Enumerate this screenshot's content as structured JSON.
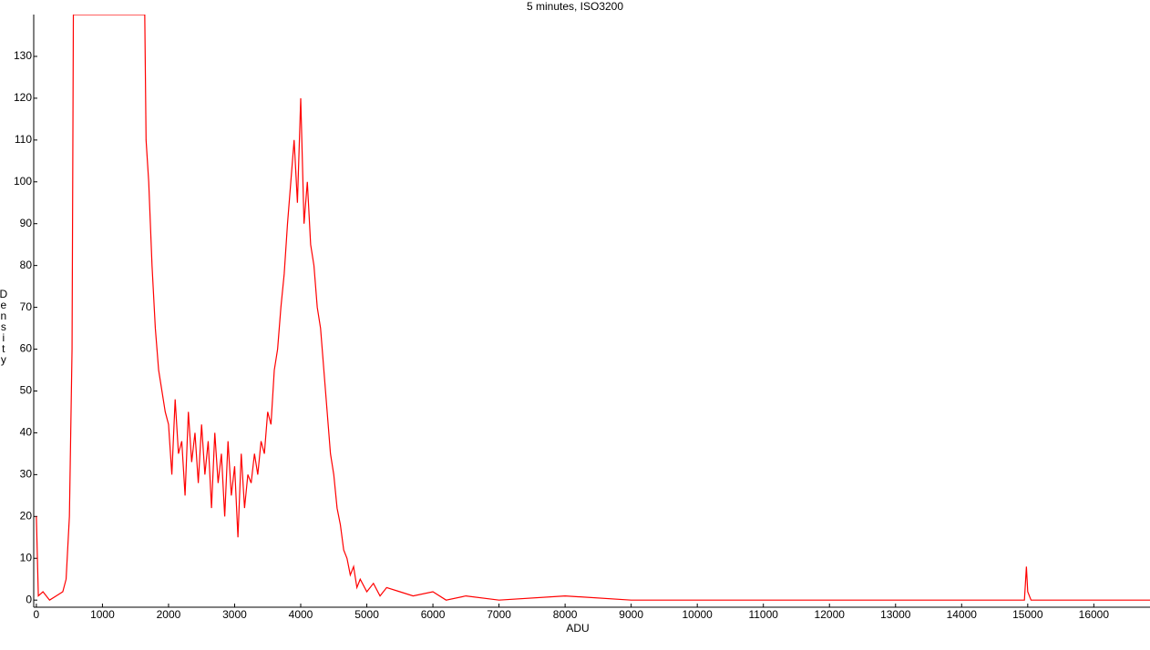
{
  "chart_data": {
    "type": "line",
    "title": "5 minutes, ISO3200",
    "x_label": "ADU",
    "y_label": "Density",
    "x": [
      0,
      30,
      100,
      200,
      300,
      400,
      450,
      500,
      540,
      560,
      600,
      1640,
      1660,
      1700,
      1750,
      1800,
      1850,
      1900,
      1950,
      2000,
      2050,
      2100,
      2150,
      2200,
      2250,
      2300,
      2350,
      2400,
      2450,
      2500,
      2550,
      2600,
      2650,
      2700,
      2750,
      2800,
      2850,
      2900,
      2950,
      3000,
      3050,
      3100,
      3150,
      3200,
      3250,
      3300,
      3350,
      3400,
      3450,
      3500,
      3550,
      3600,
      3650,
      3700,
      3750,
      3800,
      3850,
      3900,
      3950,
      4000,
      4050,
      4100,
      4150,
      4200,
      4250,
      4300,
      4350,
      4400,
      4450,
      4500,
      4550,
      4600,
      4650,
      4700,
      4750,
      4800,
      4850,
      4900,
      5000,
      5100,
      5200,
      5300,
      5500,
      5700,
      6000,
      6200,
      6500,
      7000,
      8000,
      9000,
      10000,
      12000,
      14000,
      14950,
      14980,
      15000,
      15050,
      16850
    ],
    "series": [
      {
        "name": "Density",
        "color": "#ff0000",
        "values": [
          20,
          1,
          2,
          0,
          1,
          2,
          5,
          20,
          60,
          140,
          140,
          140,
          110,
          100,
          80,
          65,
          55,
          50,
          45,
          42,
          30,
          48,
          35,
          38,
          25,
          45,
          33,
          40,
          28,
          42,
          30,
          38,
          22,
          40,
          28,
          35,
          20,
          38,
          25,
          32,
          15,
          35,
          22,
          30,
          28,
          35,
          30,
          38,
          35,
          45,
          42,
          55,
          60,
          70,
          78,
          90,
          100,
          110,
          95,
          120,
          90,
          100,
          85,
          80,
          70,
          65,
          55,
          45,
          35,
          30,
          22,
          18,
          12,
          10,
          6,
          8,
          3,
          5,
          2,
          4,
          1,
          3,
          2,
          1,
          2,
          0,
          1,
          0,
          1,
          0,
          0,
          0,
          0,
          0,
          8,
          2,
          0,
          0
        ]
      }
    ],
    "xlim": [
      -40,
      16850
    ],
    "ylim": [
      -1.7,
      140
    ],
    "xticks": [
      0,
      1000,
      2000,
      3000,
      4000,
      5000,
      6000,
      7000,
      8000,
      9000,
      10000,
      11000,
      12000,
      13000,
      14000,
      15000,
      16000
    ],
    "yticks": [
      0,
      10,
      20,
      30,
      40,
      50,
      60,
      70,
      80,
      90,
      100,
      110,
      120,
      130
    ]
  }
}
